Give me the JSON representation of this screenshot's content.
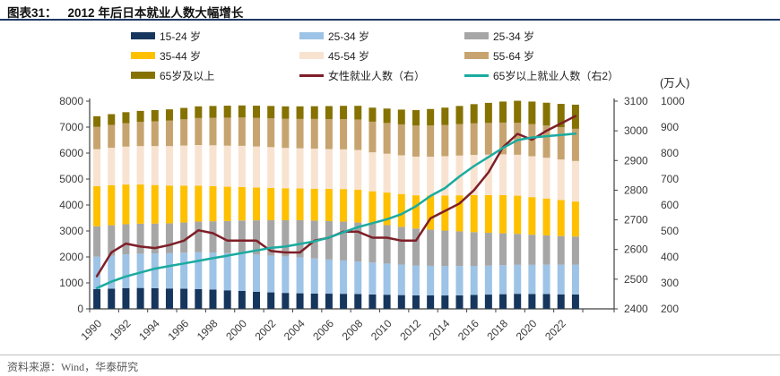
{
  "title": {
    "prefix": "图表31：",
    "text": "2012 年后日本就业人数大幅增长"
  },
  "unit_label": "(万人)",
  "source": {
    "label": "资料来源：Wind，华泰研究"
  },
  "colors": {
    "title_rule": "#1F3864",
    "axis_line": "#404040",
    "tick_text": "#3a3a3a",
    "footer_rule": "#bfbfbf",
    "footer_text": "#595959"
  },
  "legend": [
    {
      "label": "15-24 岁",
      "color": "#17365D",
      "type": "block"
    },
    {
      "label": "25-34 岁",
      "color": "#9DC3E6",
      "type": "block"
    },
    {
      "label": "25-34 岁",
      "color": "#A6A6A6",
      "type": "block"
    },
    {
      "label": "35-44 岁",
      "color": "#FFC000",
      "type": "block"
    },
    {
      "label": "45-54 岁",
      "color": "#F8E3D1",
      "type": "block"
    },
    {
      "label": "55-64 岁",
      "color": "#C7A46F",
      "type": "block"
    },
    {
      "label": "65岁及以上",
      "color": "#857200",
      "type": "block"
    },
    {
      "label": "女性就业人数（右）",
      "color": "#7E1F28",
      "type": "line"
    },
    {
      "label": "65岁以上就业人数（右2）",
      "color": "#1BABA0",
      "type": "line"
    }
  ],
  "chart_data": {
    "type": "bar",
    "subtype": "stacked-bars-with-lines",
    "title": "2012 年后日本就业人数大幅增长",
    "categories": [
      1990,
      1991,
      1992,
      1993,
      1994,
      1995,
      1996,
      1997,
      1998,
      1999,
      2000,
      2001,
      2002,
      2003,
      2004,
      2005,
      2006,
      2007,
      2008,
      2009,
      2010,
      2011,
      2012,
      2013,
      2014,
      2015,
      2016,
      2017,
      2018,
      2019,
      2020,
      2021,
      2022,
      2023
    ],
    "x_tick_labels": [
      "1990",
      "1992",
      "1994",
      "1996",
      "1998",
      "2000",
      "2002",
      "2004",
      "2006",
      "2008",
      "2010",
      "2012",
      "2014",
      "2016",
      "2018",
      "2020",
      "2022"
    ],
    "axes": {
      "left": {
        "min": 0,
        "max": 8000,
        "step": 1000
      },
      "right": {
        "min": 2400,
        "max": 3100,
        "step": 100
      },
      "right2": {
        "min": 200,
        "max": 1000,
        "step": 100
      }
    },
    "series": [
      {
        "name": "15-24 岁",
        "color": "#17365D",
        "values": [
          760,
          780,
          800,
          805,
          795,
          785,
          775,
          765,
          745,
          715,
          690,
          660,
          635,
          615,
          600,
          590,
          585,
          580,
          570,
          555,
          545,
          530,
          520,
          518,
          516,
          520,
          535,
          550,
          565,
          580,
          575,
          570,
          560,
          555
        ]
      },
      {
        "name": "25-34 岁",
        "color": "#9DC3E6",
        "values": [
          1250,
          1275,
          1300,
          1320,
          1340,
          1360,
          1390,
          1415,
          1425,
          1430,
          1435,
          1430,
          1420,
          1405,
          1385,
          1350,
          1315,
          1285,
          1255,
          1230,
          1200,
          1175,
          1150,
          1140,
          1135,
          1130,
          1120,
          1115,
          1115,
          1115,
          1120,
          1130,
          1140,
          1150
        ]
      },
      {
        "name": "25-34 岁",
        "color": "#A6A6A6",
        "values": [
          1170,
          1165,
          1160,
          1155,
          1150,
          1150,
          1160,
          1180,
          1205,
          1240,
          1280,
          1320,
          1360,
          1395,
          1430,
          1460,
          1480,
          1495,
          1500,
          1495,
          1480,
          1455,
          1425,
          1395,
          1365,
          1335,
          1300,
          1265,
          1230,
          1195,
          1160,
          1130,
          1105,
          1080
        ]
      },
      {
        "name": "35-44 岁",
        "color": "#FFC000",
        "values": [
          1550,
          1545,
          1530,
          1510,
          1485,
          1455,
          1420,
          1385,
          1350,
          1320,
          1290,
          1265,
          1245,
          1230,
          1225,
          1230,
          1240,
          1255,
          1270,
          1250,
          1255,
          1265,
          1280,
          1310,
          1350,
          1390,
          1425,
          1450,
          1470,
          1470,
          1450,
          1420,
          1385,
          1350
        ]
      },
      {
        "name": "45-54 岁",
        "color": "#F8E3D1",
        "values": [
          1420,
          1440,
          1460,
          1480,
          1500,
          1520,
          1545,
          1565,
          1575,
          1580,
          1585,
          1580,
          1570,
          1555,
          1545,
          1540,
          1535,
          1530,
          1525,
          1500,
          1495,
          1490,
          1490,
          1500,
          1515,
          1530,
          1550,
          1560,
          1570,
          1575,
          1575,
          1570,
          1565,
          1560
        ]
      },
      {
        "name": "55-64 岁",
        "color": "#C7A46F",
        "values": [
          860,
          880,
          905,
          930,
          955,
          980,
          1010,
          1040,
          1060,
          1080,
          1090,
          1100,
          1110,
          1120,
          1130,
          1145,
          1155,
          1165,
          1175,
          1180,
          1185,
          1190,
          1195,
          1200,
          1205,
          1210,
          1215,
          1220,
          1225,
          1230,
          1235,
          1240,
          1240,
          1240
        ]
      },
      {
        "name": "65岁及以上",
        "color": "#857200",
        "values": [
          410,
          415,
          420,
          425,
          430,
          435,
          440,
          450,
          455,
          460,
          465,
          470,
          475,
          480,
          485,
          490,
          500,
          510,
          525,
          540,
          555,
          570,
          595,
          635,
          665,
          700,
          740,
          775,
          810,
          850,
          870,
          880,
          900,
          930
        ]
      }
    ],
    "lines": [
      {
        "name": "女性就业人数（右）",
        "color": "#7E1F28",
        "axis": "right",
        "values": [
          2510,
          2590,
          2620,
          2610,
          2605,
          2615,
          2630,
          2665,
          2655,
          2630,
          2630,
          2630,
          2595,
          2590,
          2590,
          2630,
          2640,
          2660,
          2660,
          2640,
          2640,
          2630,
          2630,
          2705,
          2730,
          2755,
          2800,
          2860,
          2945,
          2990,
          2970,
          3000,
          3025,
          3050
        ]
      },
      {
        "name": "65岁以上就业人数（右2）",
        "color": "#1BABA0",
        "axis": "right2",
        "values": [
          280,
          305,
          325,
          340,
          355,
          365,
          375,
          385,
          395,
          405,
          415,
          425,
          435,
          440,
          450,
          460,
          475,
          495,
          515,
          530,
          545,
          565,
          595,
          635,
          665,
          710,
          750,
          785,
          820,
          850,
          860,
          865,
          870,
          875
        ]
      }
    ],
    "legend_position": "top",
    "grid": false
  }
}
